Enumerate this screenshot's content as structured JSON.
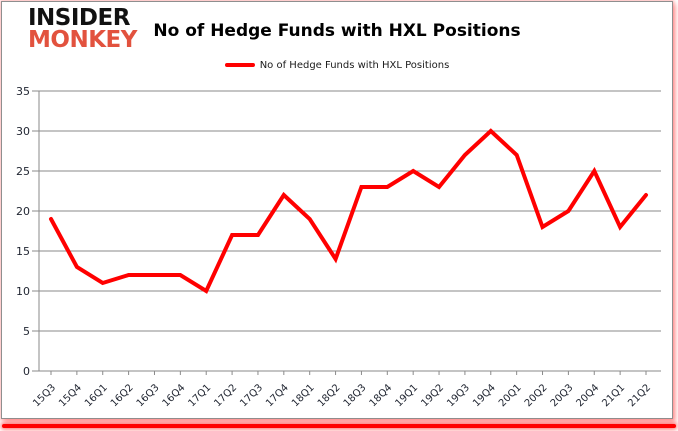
{
  "logo": {
    "line1": "INSIDER",
    "line2": "MONKEY"
  },
  "header": {
    "title": "No of Hedge Funds with HXL Positions"
  },
  "legend": {
    "label": "No of Hedge Funds with HXL Positions",
    "line_color": "#ff0000"
  },
  "chart_data": {
    "type": "line",
    "title": "No of Hedge Funds with HXL Positions",
    "categories": [
      "15Q3",
      "15Q4",
      "16Q1",
      "16Q2",
      "16Q3",
      "16Q4",
      "17Q1",
      "17Q2",
      "17Q3",
      "17Q4",
      "18Q1",
      "18Q2",
      "18Q3",
      "18Q4",
      "19Q1",
      "19Q2",
      "19Q3",
      "19Q4",
      "20Q1",
      "20Q2",
      "20Q3",
      "20Q4",
      "21Q1",
      "21Q2"
    ],
    "series": [
      {
        "name": "No of Hedge Funds with HXL Positions",
        "color": "#ff0000",
        "values": [
          19,
          13,
          11,
          12,
          12,
          12,
          10,
          17,
          17,
          22,
          19,
          14,
          23,
          23,
          25,
          23,
          27,
          30,
          27,
          18,
          20,
          25,
          18,
          22
        ]
      }
    ],
    "xlabel": "",
    "ylabel": "",
    "ylim": [
      0,
      35
    ],
    "ytick_step": 5,
    "grid": true,
    "legend_position": "top-center"
  },
  "colors": {
    "line_red": "#ff0000",
    "logo_red": "#e2523e",
    "grid_gray": "#8a8a8a",
    "axis_text": "#1f2430",
    "border_gray": "#8f8f8f",
    "bottom_bar_red": "#ff0000"
  }
}
